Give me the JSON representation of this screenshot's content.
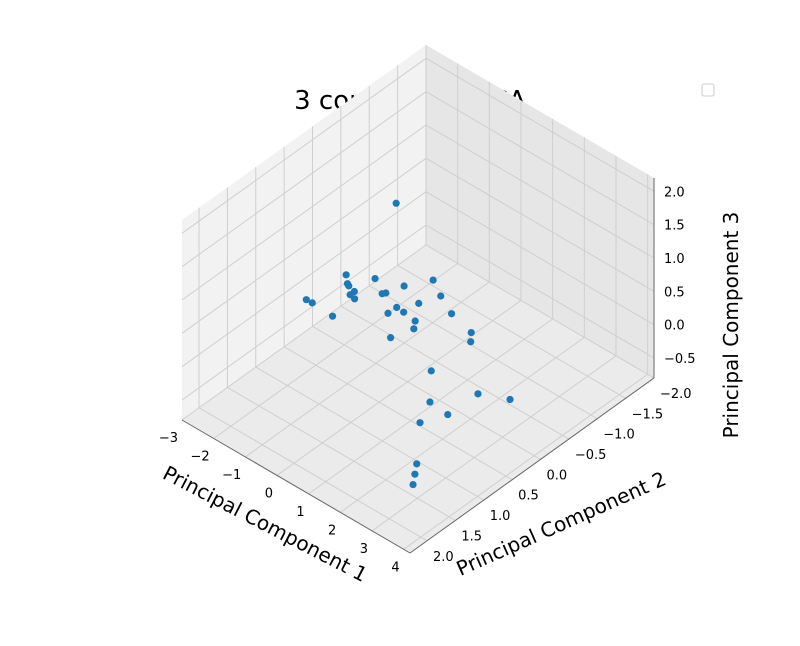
{
  "chart_data": {
    "type": "scatter",
    "projection": "3d",
    "title": "3 component PCA",
    "xlabel": "Principal Component 1",
    "ylabel": "Principal Component 2",
    "zlabel": "Principal Component 3",
    "xlim": [
      -3,
      4.2
    ],
    "ylim": [
      -2,
      2.3
    ],
    "zlim": [
      -0.8,
      2.2
    ],
    "xticks": [
      "−3",
      "−2",
      "−1",
      "0",
      "1",
      "2",
      "3",
      "4"
    ],
    "yticks": [
      "−2.0",
      "−1.5",
      "−1.0",
      "−0.5",
      "0.0",
      "0.5",
      "1.0",
      "1.5",
      "2.0"
    ],
    "zticks": [
      "−0.5",
      "0.0",
      "0.5",
      "1.0",
      "1.5",
      "2.0"
    ],
    "grid": true,
    "legend": "top-right",
    "colors": {
      "points": "#1f77b4",
      "pane_left": "#f2f2f2",
      "pane_right": "#e6e6e6",
      "pane_floor": "#ebebeb",
      "grid": "#cfcfcf"
    },
    "series": [
      {
        "x": [
          -1.7,
          -1.1,
          -0.4,
          0.4,
          -2.1,
          -1.4,
          -0.7,
          0.2,
          -1.4,
          -1.0,
          -0.6,
          -0.2,
          0.3,
          -0.8,
          0.1,
          -1.5,
          -0.3,
          0.6,
          2.8,
          3.1,
          3.4,
          2.5,
          3.6,
          3.8,
          -2.3,
          2.7,
          3.3,
          2.9,
          -0.9,
          0.9,
          1.1,
          -1.9,
          -0.5,
          0.5,
          0.0
        ],
        "y": [
          -1.4,
          -1.2,
          -1.0,
          -0.9,
          -0.6,
          -0.4,
          -0.2,
          0.0,
          0.3,
          0.5,
          0.7,
          0.9,
          1.1,
          0.0,
          0.4,
          0.1,
          -0.1,
          0.2,
          1.4,
          1.6,
          1.8,
          1.0,
          1.3,
          1.9,
          0.5,
          -0.3,
          0.6,
          1.2,
          -0.7,
          0.8,
          -0.5,
          -1.0,
          1.4,
          1.6,
          0.2
        ],
        "z": [
          -0.6,
          -0.55,
          -0.5,
          -0.5,
          -0.2,
          -0.1,
          0.0,
          0.05,
          0.6,
          0.7,
          0.9,
          1.0,
          1.2,
          0.3,
          0.5,
          0.2,
          0.1,
          0.4,
          -0.4,
          -0.35,
          -0.3,
          0.2,
          0.5,
          0.8,
          0.1,
          -0.5,
          0.3,
          0.9,
          -0.3,
          0.6,
          -0.2,
          -0.5,
          1.1,
          1.3,
          2.0
        ]
      }
    ]
  }
}
